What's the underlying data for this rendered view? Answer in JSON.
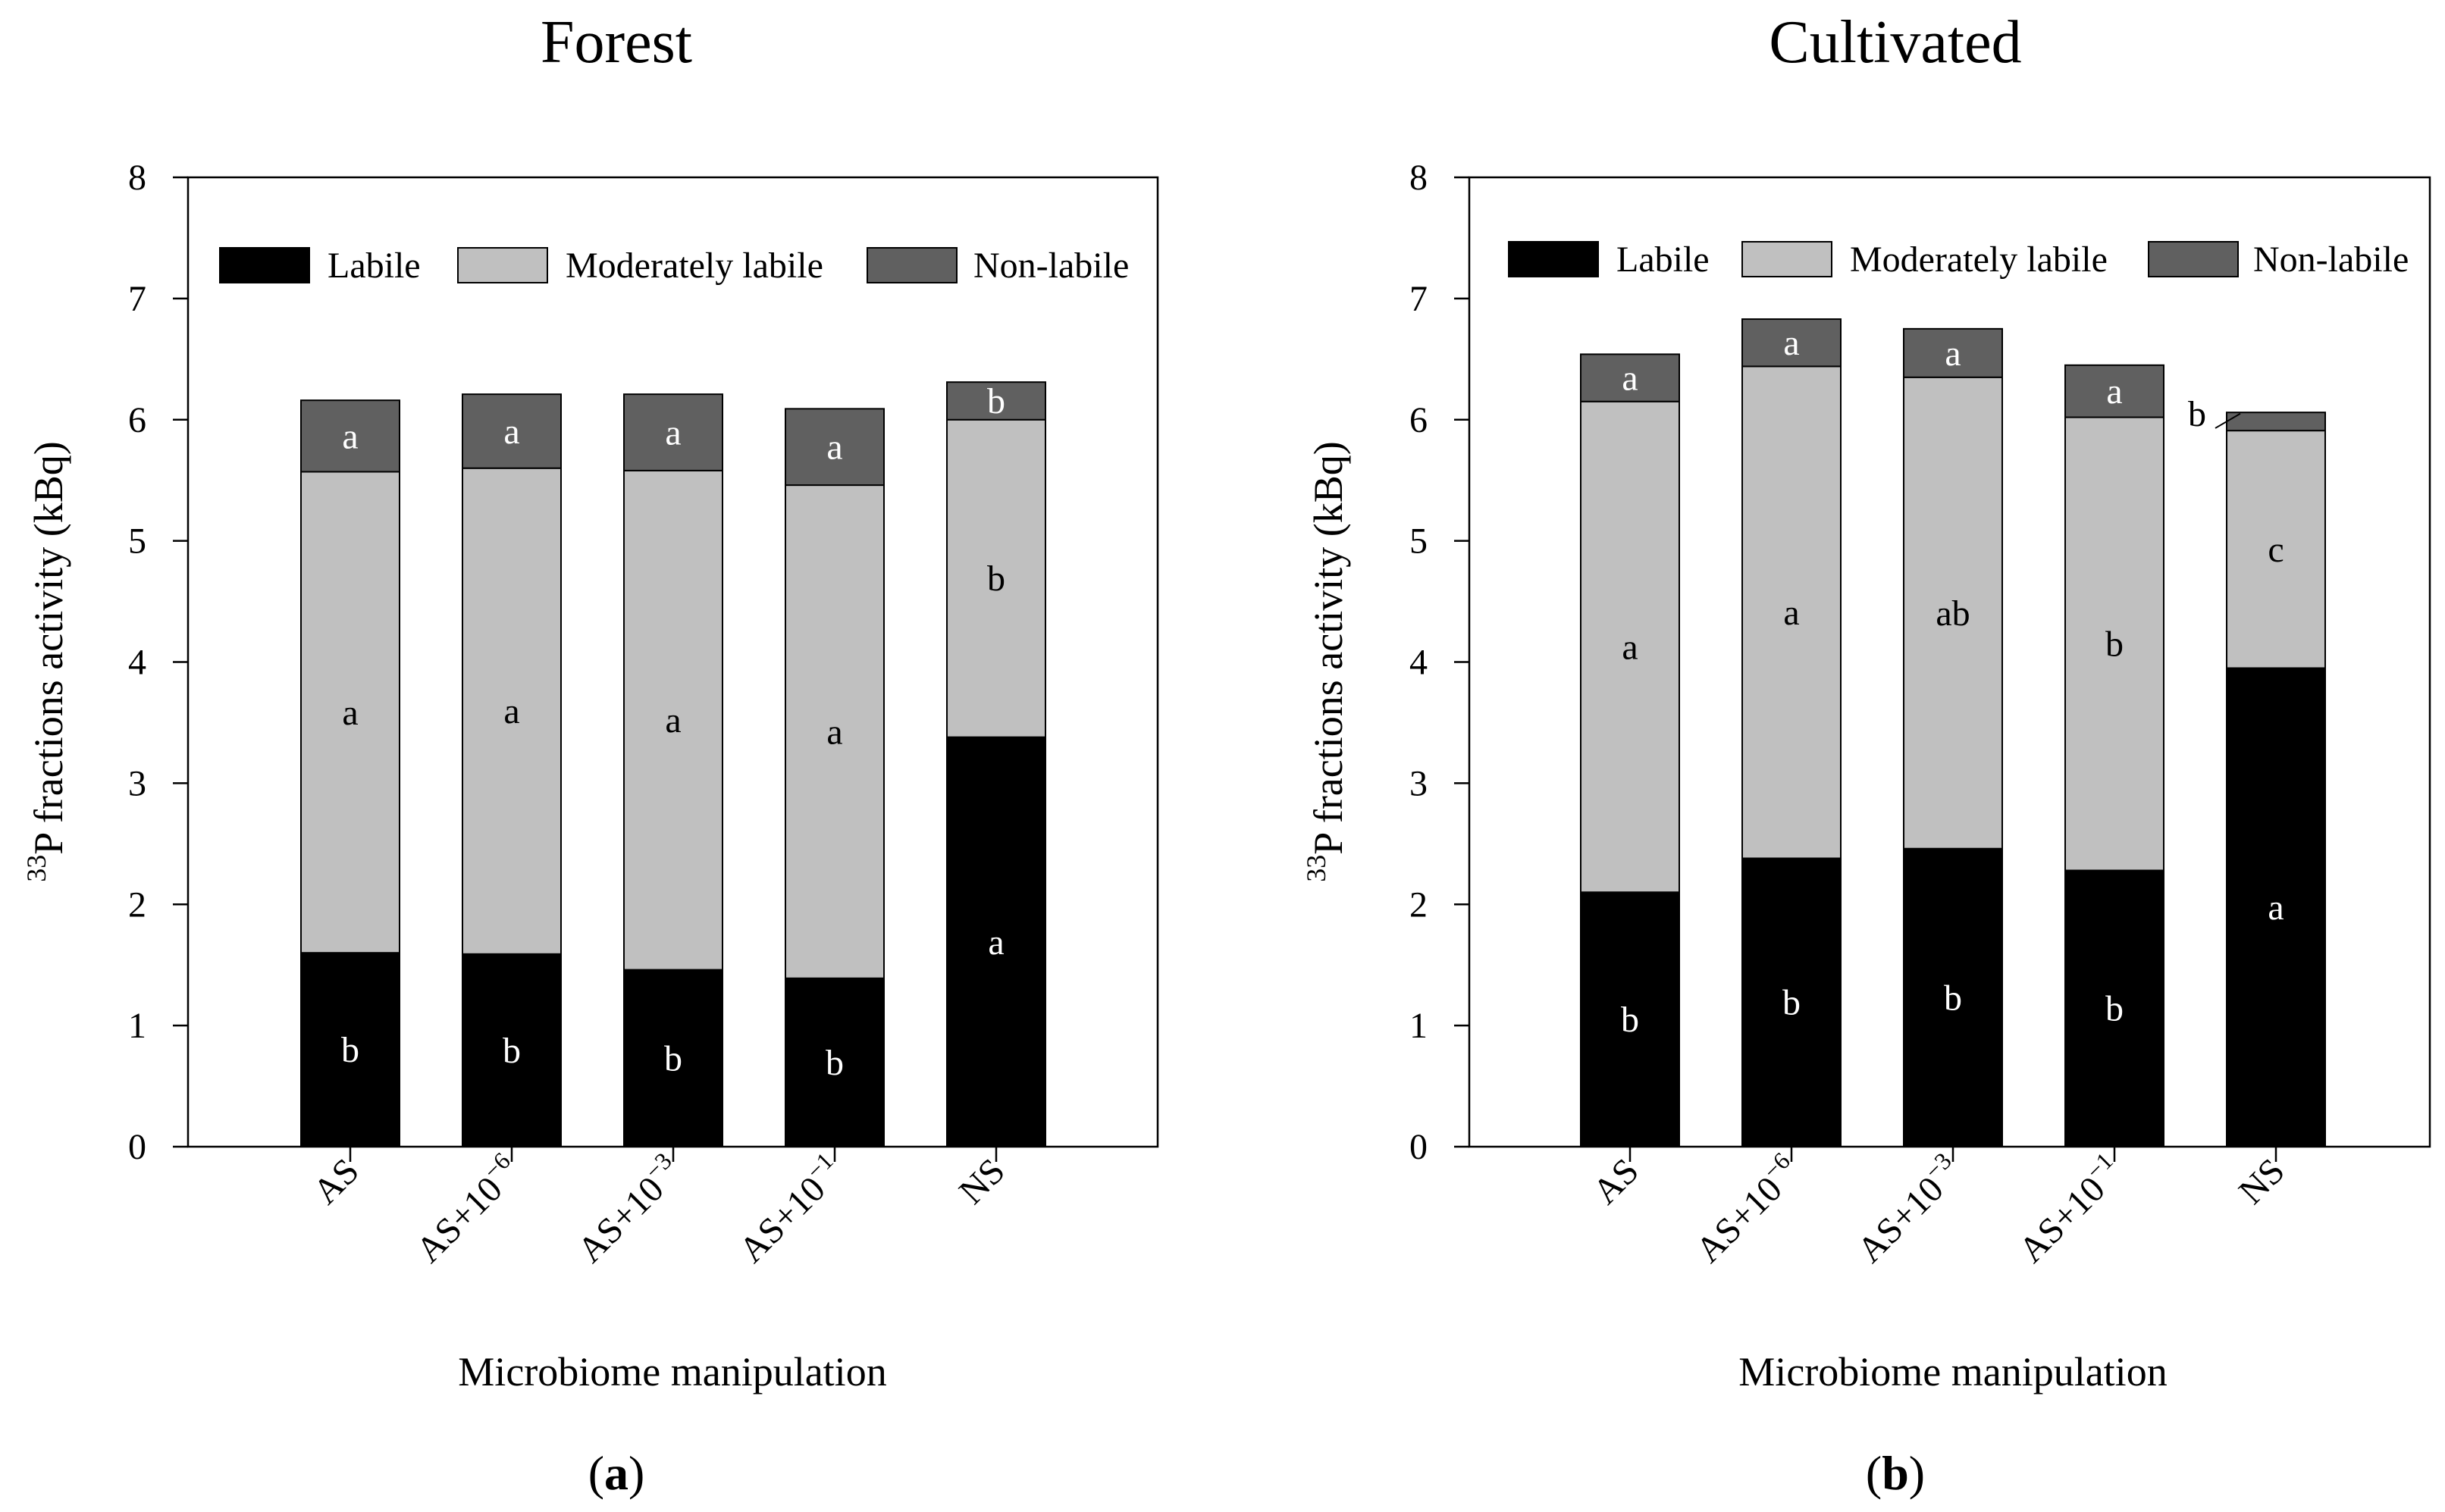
{
  "figure": {
    "panels": [
      {
        "id": "forest",
        "title": "Forest",
        "panel_tag": {
          "open": "(",
          "letter": "a",
          "close": ")"
        },
        "ylabel": {
          "superscript": "33",
          "text": "P fractions activity (kBq)"
        },
        "xlabel": "Microbiome manipulation",
        "legend": [
          "Labile",
          "Moderately labile",
          "Non-labile"
        ],
        "categories": [
          {
            "base": "AS",
            "exp": ""
          },
          {
            "base": "AS+10",
            "exp": "−6"
          },
          {
            "base": "AS+10",
            "exp": "−3"
          },
          {
            "base": "AS+10",
            "exp": "−1"
          },
          {
            "base": "NS",
            "exp": ""
          }
        ],
        "yticks": [
          "0",
          "1",
          "2",
          "3",
          "4",
          "5",
          "6",
          "7",
          "8"
        ],
        "letters": {
          "Labile": [
            "b",
            "b",
            "b",
            "b",
            "a"
          ],
          "Moderately labile": [
            "a",
            "a",
            "a",
            "a",
            "b"
          ],
          "Non-labile": [
            "a",
            "a",
            "a",
            "a",
            "b"
          ]
        }
      },
      {
        "id": "cultivated",
        "title": "Cultivated",
        "panel_tag": {
          "open": "(",
          "letter": "b",
          "close": ")"
        },
        "ylabel": {
          "superscript": "33",
          "text": "P fractions activity (kBq)"
        },
        "xlabel": "Microbiome manipulation",
        "legend": [
          "Labile",
          "Moderately labile",
          "Non-labile"
        ],
        "categories": [
          {
            "base": "AS",
            "exp": ""
          },
          {
            "base": "AS+10",
            "exp": "−6"
          },
          {
            "base": "AS+10",
            "exp": "−3"
          },
          {
            "base": "AS+10",
            "exp": "−1"
          },
          {
            "base": "NS",
            "exp": ""
          }
        ],
        "yticks": [
          "0",
          "1",
          "2",
          "3",
          "4",
          "5",
          "6",
          "7",
          "8"
        ],
        "letters": {
          "Labile": [
            "b",
            "b",
            "b",
            "b",
            "a"
          ],
          "Moderately labile": [
            "a",
            "a",
            "ab",
            "b",
            "c"
          ],
          "Non-labile": [
            "a",
            "a",
            "a",
            "a",
            "b"
          ]
        }
      }
    ]
  },
  "chart_data": [
    {
      "type": "bar",
      "stacked": true,
      "title": "Forest",
      "xlabel": "Microbiome manipulation",
      "ylabel": "33P fractions activity (kBq)",
      "ylim": [
        0,
        8
      ],
      "categories": [
        "AS",
        "AS+10−6",
        "AS+10−3",
        "AS+10−1",
        "NS"
      ],
      "series": [
        {
          "name": "Labile",
          "color": "#000000",
          "values": [
            1.6,
            1.59,
            1.46,
            1.39,
            3.38
          ]
        },
        {
          "name": "Moderately labile",
          "color": "#c0c0c0",
          "values": [
            3.97,
            4.01,
            4.12,
            4.07,
            2.62
          ]
        },
        {
          "name": "Non-labile",
          "color": "#606060",
          "values": [
            0.59,
            0.61,
            0.63,
            0.63,
            0.31
          ]
        }
      ]
    },
    {
      "type": "bar",
      "stacked": true,
      "title": "Cultivated",
      "xlabel": "Microbiome manipulation",
      "ylabel": "33P fractions activity (kBq)",
      "ylim": [
        0,
        8
      ],
      "categories": [
        "AS",
        "AS+10−6",
        "AS+10−3",
        "AS+10−1",
        "NS"
      ],
      "series": [
        {
          "name": "Labile",
          "color": "#000000",
          "values": [
            2.1,
            2.38,
            2.46,
            2.28,
            3.95
          ]
        },
        {
          "name": "Moderately labile",
          "color": "#c0c0c0",
          "values": [
            4.05,
            4.06,
            3.89,
            3.74,
            1.96
          ]
        },
        {
          "name": "Non-labile",
          "color": "#606060",
          "values": [
            0.39,
            0.39,
            0.4,
            0.43,
            0.15
          ]
        }
      ]
    }
  ]
}
